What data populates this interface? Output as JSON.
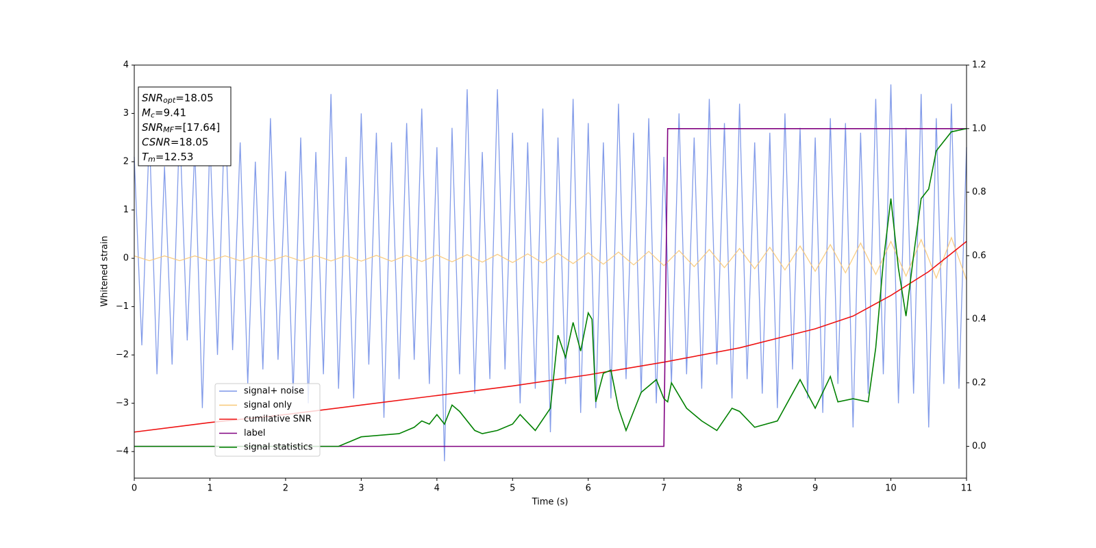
{
  "chart_data": {
    "type": "line",
    "xlabel": "Time (s)",
    "ylabel": "Whitened strain",
    "xlim": [
      0,
      11
    ],
    "ylim": [
      -4.55,
      4
    ],
    "y2lim": [
      -0.1,
      1.2
    ],
    "xticks": [
      0,
      1,
      2,
      3,
      4,
      5,
      6,
      7,
      8,
      9,
      10,
      11
    ],
    "yticks": [
      -4,
      -3,
      -2,
      -1,
      0,
      1,
      2,
      3,
      4
    ],
    "y2ticks": [
      {
        "value": 0,
        "label": "0.0"
      },
      {
        "value": 0.2,
        "label": "0.2"
      },
      {
        "value": 0.4,
        "label": "0.4"
      },
      {
        "value": 0.6,
        "label": "0.6"
      },
      {
        "value": 0.8,
        "label": "0.8"
      },
      {
        "value": 1,
        "label": "1.0"
      },
      {
        "value": 1.2,
        "label": "1.2"
      }
    ],
    "annotations": [
      {
        "symbol": "SNR",
        "sub": "opt",
        "text": "=18.05"
      },
      {
        "symbol": "M",
        "sub": "c",
        "text": "=9.41"
      },
      {
        "symbol": "SNR",
        "sub": "MF",
        "text": "=[17.64]"
      },
      {
        "symbol": "CSNR",
        "text": "=18.05"
      },
      {
        "symbol": "T",
        "sub": "m",
        "text": "=12.53"
      }
    ],
    "series": [
      {
        "name": "signal+ noise",
        "color": "#7b96e8",
        "x": [
          0,
          0.1,
          0.2,
          0.3,
          0.4,
          0.5,
          0.6,
          0.7,
          0.8,
          0.9,
          1,
          1.1,
          1.2,
          1.3,
          1.4,
          1.5,
          1.6,
          1.7,
          1.8,
          1.9,
          2,
          2.1,
          2.2,
          2.3,
          2.4,
          2.5,
          2.6,
          2.7,
          2.8,
          2.9,
          3,
          3.1,
          3.2,
          3.3,
          3.4,
          3.5,
          3.6,
          3.7,
          3.8,
          3.9,
          4,
          4.1,
          4.2,
          4.3,
          4.4,
          4.5,
          4.6,
          4.7,
          4.8,
          4.9,
          5,
          5.1,
          5.2,
          5.3,
          5.4,
          5.5,
          5.6,
          5.7,
          5.8,
          5.9,
          6,
          6.1,
          6.2,
          6.3,
          6.4,
          6.5,
          6.6,
          6.7,
          6.8,
          6.9,
          7,
          7.1,
          7.2,
          7.3,
          7.4,
          7.5,
          7.6,
          7.7,
          7.8,
          7.9,
          8,
          8.1,
          8.2,
          8.3,
          8.4,
          8.5,
          8.6,
          8.7,
          8.8,
          8.9,
          9,
          9.1,
          9.2,
          9.3,
          9.4,
          9.5,
          9.6,
          9.7,
          9.8,
          9.9,
          10,
          10.1,
          10.2,
          10.3,
          10.4,
          10.5,
          10.6,
          10.7,
          10.8,
          10.9,
          11
        ],
        "values": [
          2.1,
          -1.8,
          2.6,
          -2.4,
          1.9,
          -2.2,
          2.8,
          -1.7,
          2.3,
          -3.1,
          2.5,
          -2.0,
          3.2,
          -1.9,
          2.4,
          -2.6,
          2.0,
          -2.3,
          2.9,
          -2.1,
          1.8,
          -2.8,
          2.5,
          -3.0,
          2.2,
          -2.4,
          3.4,
          -2.7,
          2.1,
          -2.9,
          3.0,
          -2.2,
          2.6,
          -3.3,
          2.4,
          -2.5,
          2.8,
          -2.1,
          3.1,
          -2.6,
          2.3,
          -4.2,
          2.7,
          -2.4,
          3.5,
          -2.8,
          2.2,
          -2.5,
          3.5,
          -2.3,
          2.6,
          -3.0,
          2.4,
          -2.7,
          3.1,
          -3.6,
          2.5,
          -2.6,
          3.3,
          -3.2,
          2.8,
          -3.1,
          2.4,
          -2.9,
          3.2,
          -2.5,
          2.6,
          -2.8,
          2.9,
          -3.0,
          2.1,
          -2.6,
          3.0,
          -2.4,
          2.5,
          -2.7,
          3.3,
          -2.2,
          2.8,
          -2.9,
          3.2,
          -2.5,
          2.4,
          -2.8,
          2.6,
          -3.1,
          3.0,
          -2.3,
          2.7,
          -2.9,
          2.5,
          -3.2,
          2.9,
          -2.6,
          2.8,
          -3.5,
          2.6,
          -2.8,
          3.3,
          -2.4,
          3.6,
          -3.0,
          2.7,
          -2.8,
          3.4,
          -3.5,
          2.9,
          -2.6,
          3.2,
          -2.7,
          2.3
        ]
      },
      {
        "name": "signal only",
        "color": "#f8c877",
        "x": [
          0,
          0.2,
          0.4,
          0.6,
          0.8,
          1,
          1.2,
          1.4,
          1.6,
          1.8,
          2,
          2.2,
          2.4,
          2.6,
          2.8,
          3,
          3.2,
          3.4,
          3.6,
          3.8,
          4,
          4.2,
          4.4,
          4.6,
          4.8,
          5,
          5.2,
          5.4,
          5.6,
          5.8,
          6,
          6.2,
          6.4,
          6.6,
          6.8,
          7,
          7.2,
          7.4,
          7.6,
          7.8,
          8,
          8.2,
          8.4,
          8.6,
          8.8,
          9,
          9.2,
          9.4,
          9.6,
          9.8,
          10,
          10.2,
          10.4,
          10.6,
          10.8,
          11
        ],
        "values": [
          0.05,
          -0.05,
          0.05,
          -0.05,
          0.05,
          -0.05,
          0.051,
          -0.051,
          0.051,
          -0.052,
          0.052,
          -0.053,
          0.054,
          -0.055,
          0.057,
          -0.058,
          0.06,
          -0.062,
          0.064,
          -0.066,
          0.069,
          -0.072,
          0.076,
          -0.079,
          0.083,
          -0.088,
          0.092,
          -0.097,
          0.103,
          -0.109,
          0.115,
          -0.122,
          0.129,
          -0.136,
          0.144,
          -0.153,
          0.162,
          -0.172,
          0.182,
          -0.193,
          0.204,
          -0.216,
          0.228,
          -0.241,
          0.255,
          -0.269,
          0.284,
          -0.3,
          0.316,
          -0.333,
          0.35,
          -0.369,
          0.388,
          -0.408,
          0.429,
          -0.45
        ]
      },
      {
        "name": "cumilative SNR",
        "color": "#ee1111",
        "axis": "y2",
        "x": [
          0,
          1,
          2,
          3,
          4,
          5,
          6,
          7,
          8,
          9,
          9.5,
          10,
          10.5,
          11
        ],
        "values": [
          0.045,
          0.075,
          0.1,
          0.13,
          0.16,
          0.19,
          0.225,
          0.265,
          0.31,
          0.37,
          0.41,
          0.475,
          0.55,
          0.645
        ]
      },
      {
        "name": "label",
        "color": "#800080",
        "axis": "y2",
        "x": [
          0,
          7,
          7.05,
          11
        ],
        "values": [
          0,
          0,
          1,
          1
        ]
      },
      {
        "name": "signal statistics",
        "color": "#008000",
        "axis": "y2",
        "x": [
          0,
          2.7,
          3,
          3.5,
          3.7,
          3.8,
          3.9,
          4,
          4.1,
          4.2,
          4.3,
          4.5,
          4.6,
          4.8,
          5,
          5.1,
          5.3,
          5.5,
          5.6,
          5.7,
          5.8,
          5.9,
          6,
          6.05,
          6.1,
          6.2,
          6.3,
          6.4,
          6.5,
          6.7,
          6.9,
          7,
          7.05,
          7.1,
          7.3,
          7.5,
          7.7,
          7.9,
          8,
          8.2,
          8.5,
          8.8,
          9,
          9.2,
          9.3,
          9.5,
          9.7,
          9.8,
          9.9,
          10,
          10.1,
          10.2,
          10.3,
          10.4,
          10.5,
          10.6,
          10.8,
          11
        ],
        "values": [
          0,
          0,
          0.03,
          0.04,
          0.06,
          0.08,
          0.07,
          0.1,
          0.07,
          0.13,
          0.11,
          0.05,
          0.04,
          0.05,
          0.07,
          0.1,
          0.05,
          0.12,
          0.35,
          0.28,
          0.39,
          0.3,
          0.42,
          0.4,
          0.14,
          0.23,
          0.24,
          0.12,
          0.05,
          0.17,
          0.21,
          0.15,
          0.14,
          0.2,
          0.12,
          0.08,
          0.05,
          0.12,
          0.11,
          0.06,
          0.08,
          0.21,
          0.12,
          0.22,
          0.14,
          0.15,
          0.14,
          0.31,
          0.58,
          0.78,
          0.56,
          0.41,
          0.6,
          0.78,
          0.81,
          0.93,
          0.99,
          1
        ]
      }
    ]
  }
}
